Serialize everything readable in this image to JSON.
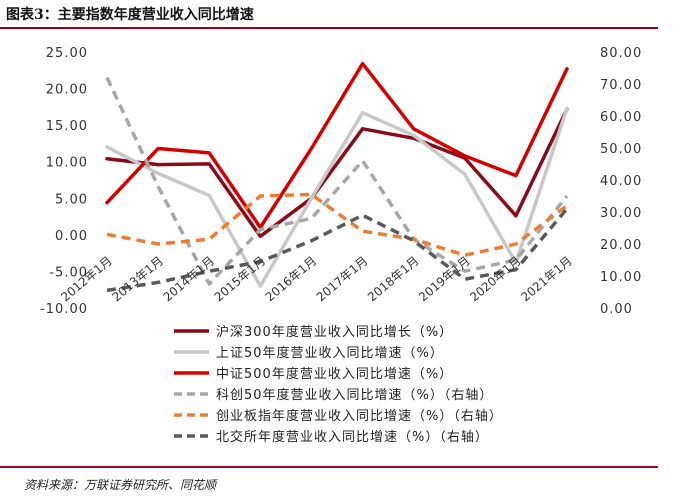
{
  "header": {
    "title": "图表3：主要指数年度营业收入同比增速"
  },
  "footer": {
    "source": "资料来源：万联证券研究所、同花顺"
  },
  "chart_data": {
    "type": "line",
    "title": "",
    "categories": [
      "2012年1月",
      "2013年1月",
      "2014年1月",
      "2015年1月",
      "2016年1月",
      "2017年1月",
      "2018年1月",
      "2019年1月",
      "2020年1月",
      "2021年1月"
    ],
    "y_left": {
      "min": -10,
      "max": 25,
      "step": 5,
      "tick_labels": [
        "-10.00",
        "-5.00",
        "0.00",
        "5.00",
        "10.00",
        "15.00",
        "20.00",
        "25.00"
      ]
    },
    "y_right": {
      "min": 0,
      "max": 80,
      "step": 10,
      "tick_labels": [
        "0.00",
        "10.00",
        "20.00",
        "30.00",
        "40.00",
        "50.00",
        "60.00",
        "70.00",
        "80.00"
      ]
    },
    "grid": false,
    "legend_position": "bottom",
    "series": [
      {
        "name": "沪深300年度营业收入同比增长（%）",
        "axis": "left",
        "style": "solid",
        "color": "#8b0a1a",
        "values": [
          10.4,
          9.6,
          9.7,
          -0.2,
          5.0,
          14.5,
          13.2,
          10.5,
          2.6,
          17.2
        ]
      },
      {
        "name": "上证50年度营业收入同比增速（%）",
        "axis": "left",
        "style": "solid",
        "color": "#c8c8c8",
        "values": [
          12.0,
          8.4,
          5.4,
          -7.0,
          5.0,
          16.7,
          13.6,
          8.3,
          -3.8,
          17.3
        ]
      },
      {
        "name": "中证500年度营业收入同比增速（%）",
        "axis": "left",
        "style": "solid",
        "color": "#d40000",
        "values": [
          4.4,
          11.8,
          11.2,
          1.0,
          11.8,
          23.4,
          14.5,
          10.8,
          8.1,
          22.7
        ]
      },
      {
        "name": "科创50年度营业收入同比增速（%）（右轴）",
        "axis": "right",
        "style": "dashed",
        "color": "#a6a6a6",
        "values": [
          72.0,
          38.0,
          7.5,
          24.5,
          28.0,
          46.0,
          21.5,
          11.5,
          15.0,
          35.0
        ]
      },
      {
        "name": "创业板指年度营业收入同比增速（%）（右轴）",
        "axis": "right",
        "style": "dashed",
        "color": "#ed7d31",
        "values": [
          23.0,
          20.0,
          21.5,
          35.0,
          35.5,
          24.0,
          21.5,
          16.5,
          20.0,
          32.0
        ]
      },
      {
        "name": "北交所年度营业收入同比增速（%）（右轴）",
        "axis": "right",
        "style": "dashed",
        "color": "#595959",
        "values": [
          5.5,
          8.0,
          11.5,
          14.5,
          21.0,
          29.0,
          21.0,
          9.0,
          12.0,
          31.0
        ]
      }
    ]
  }
}
